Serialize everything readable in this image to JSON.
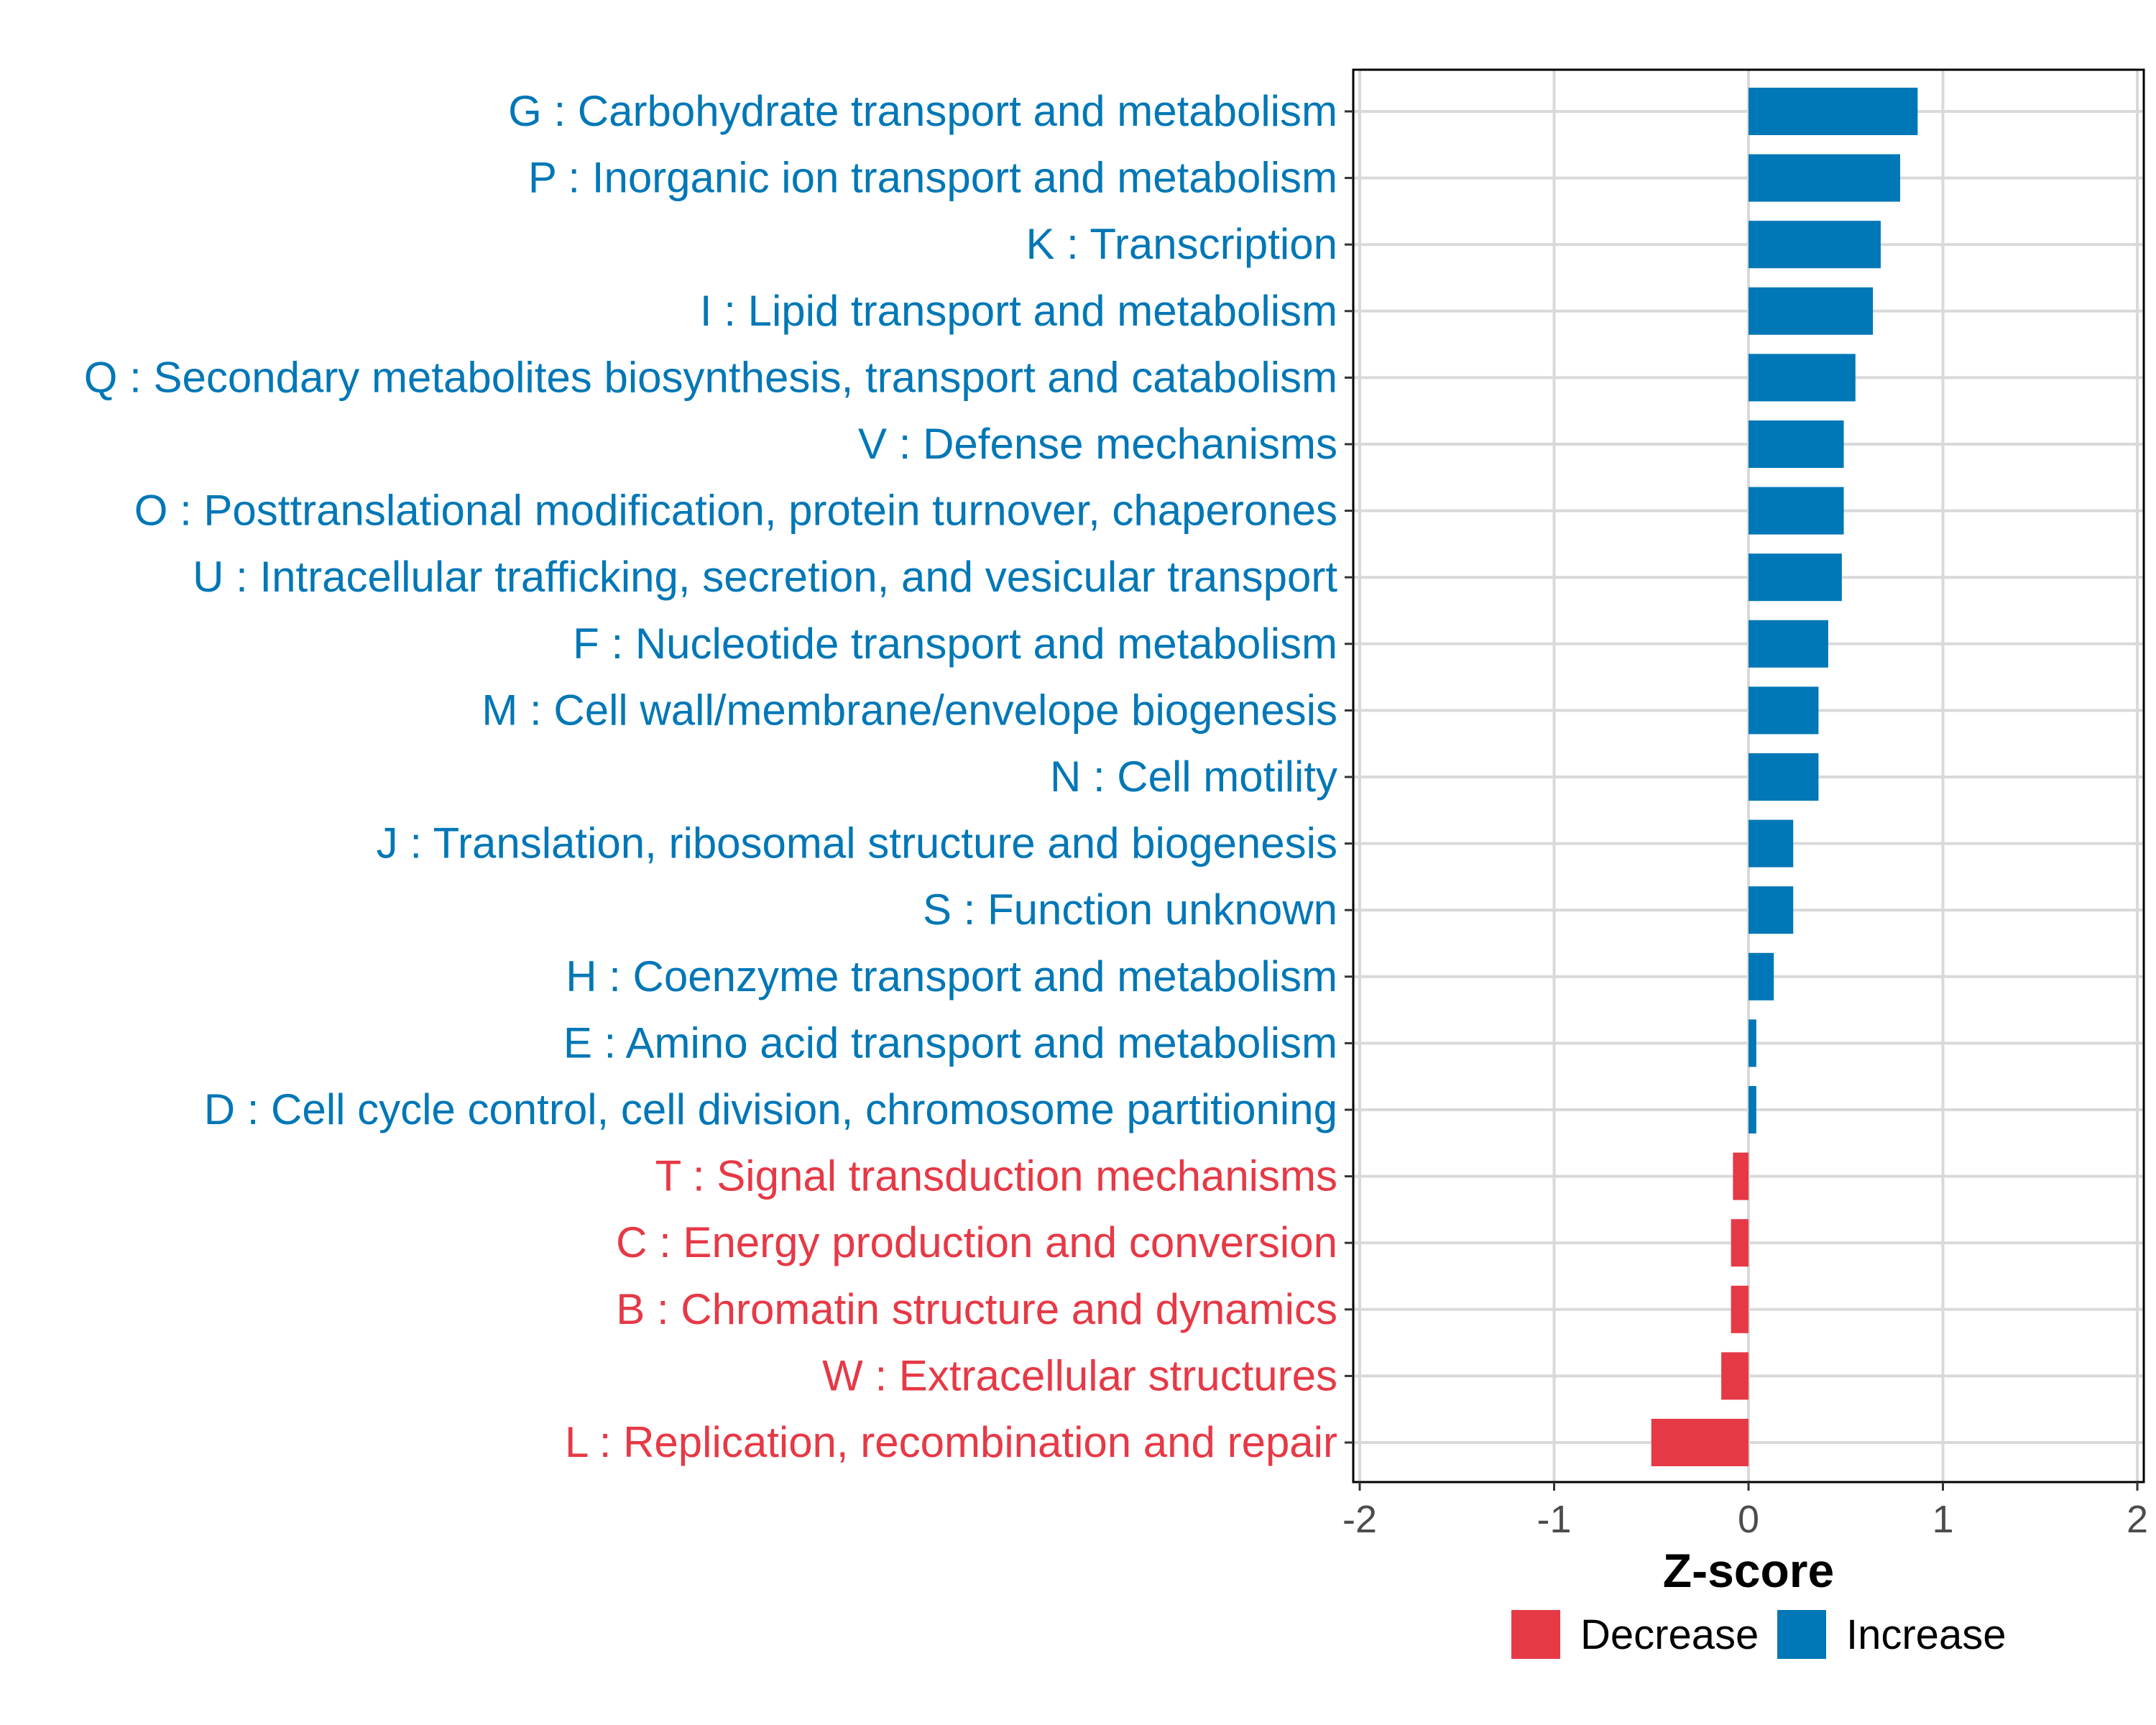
{
  "chart_data": {
    "type": "bar",
    "orientation": "horizontal",
    "xlabel": "Z-score",
    "xlim": [
      -2,
      2
    ],
    "x_ticks": [
      -2,
      -1,
      0,
      1,
      2
    ],
    "x_tick_labels": [
      "-2",
      "-1",
      "0",
      "1",
      "2"
    ],
    "grid": true,
    "categories": [
      "G : Carbohydrate transport and metabolism",
      "P : Inorganic ion transport and metabolism",
      "K : Transcription",
      "I : Lipid transport and metabolism",
      "Q : Secondary metabolites biosynthesis, transport and catabolism",
      "V : Defense mechanisms",
      "O : Posttranslational modification, protein turnover, chaperones",
      "U : Intracellular trafficking, secretion, and vesicular transport",
      "F : Nucleotide transport and metabolism",
      "M : Cell wall/membrane/envelope biogenesis",
      "N : Cell motility",
      "J : Translation, ribosomal structure and biogenesis",
      "S : Function unknown",
      "H : Coenzyme transport and metabolism",
      "E : Amino acid transport and metabolism",
      "D : Cell cycle control, cell division, chromosome partitioning",
      "T : Signal transduction mechanisms",
      "C : Energy production and conversion",
      "B : Chromatin structure and dynamics",
      "W : Extracellular structures",
      "L : Replication, recombination and repair"
    ],
    "values": [
      0.87,
      0.78,
      0.68,
      0.64,
      0.55,
      0.49,
      0.49,
      0.48,
      0.41,
      0.36,
      0.36,
      0.23,
      0.23,
      0.13,
      0.04,
      0.04,
      -0.08,
      -0.09,
      -0.09,
      -0.14,
      -0.5
    ],
    "direction": [
      "Increase",
      "Increase",
      "Increase",
      "Increase",
      "Increase",
      "Increase",
      "Increase",
      "Increase",
      "Increase",
      "Increase",
      "Increase",
      "Increase",
      "Increase",
      "Increase",
      "Increase",
      "Increase",
      "Decrease",
      "Decrease",
      "Decrease",
      "Decrease",
      "Decrease"
    ],
    "legend": {
      "position": "bottom-right",
      "entries": [
        {
          "label": "Decrease",
          "color": "#e63946"
        },
        {
          "label": "Increase",
          "color": "#0077b6"
        }
      ]
    },
    "colors": {
      "Decrease": "#e63946",
      "Increase": "#0077b6"
    }
  }
}
